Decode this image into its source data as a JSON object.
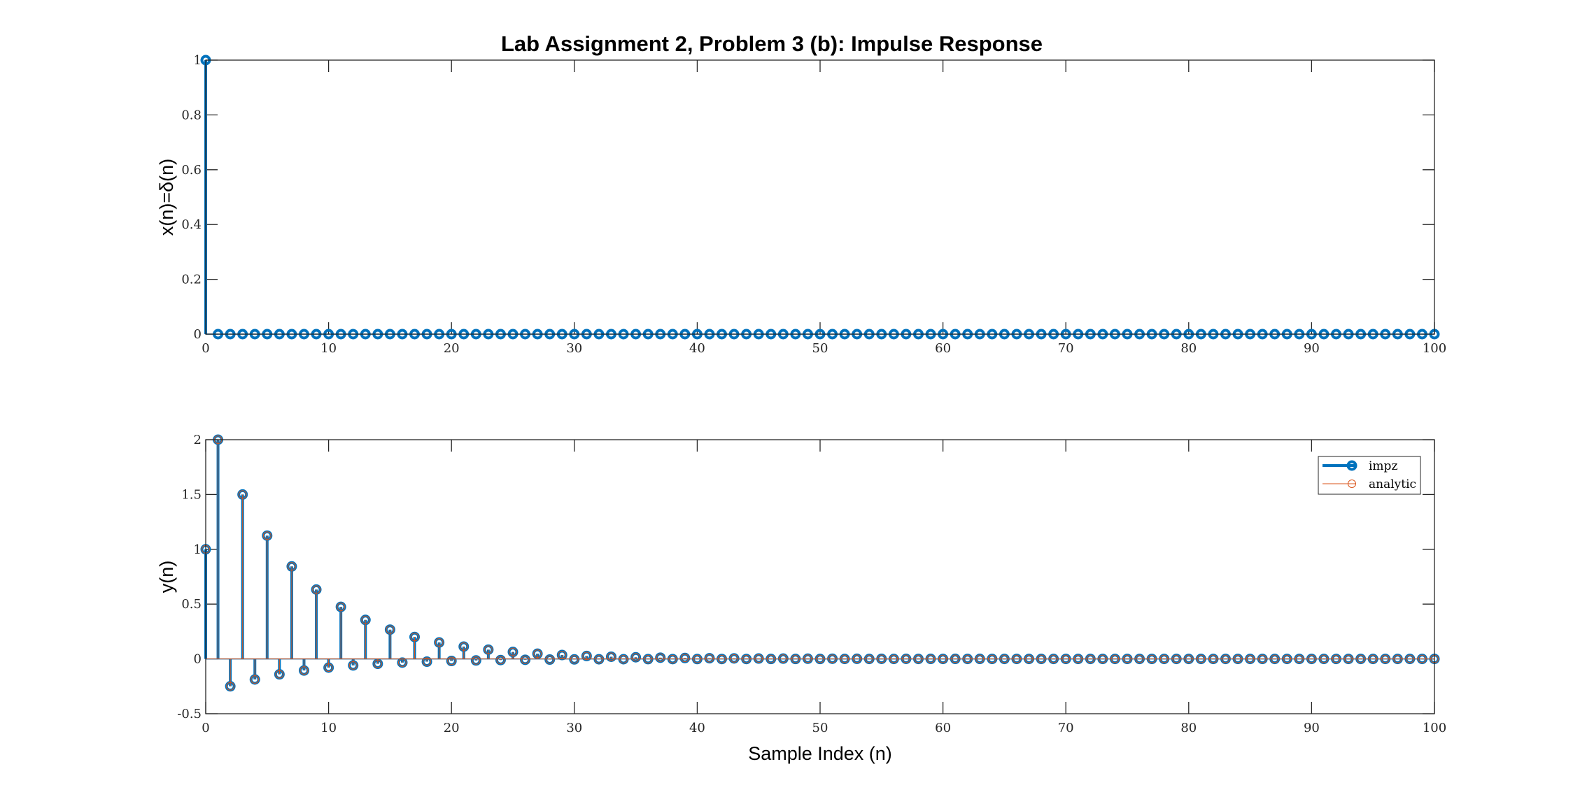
{
  "chart_data": [
    {
      "type": "stem",
      "title": "Lab Assignment 2, Problem 3 (b): Impulse Response",
      "ylabel": "x(n)=δ(n)",
      "xlabel": "",
      "xlim": [
        0,
        100
      ],
      "ylim": [
        0,
        1
      ],
      "xticks": [
        "0",
        "10",
        "20",
        "30",
        "40",
        "50",
        "60",
        "70",
        "80",
        "90",
        "100"
      ],
      "yticks": [
        "0",
        "0.2",
        "0.4",
        "0.6",
        "0.8",
        "1"
      ],
      "grid": false,
      "series": [
        {
          "color": "#0072BD",
          "rule": "impulse",
          "n_start": 0,
          "n_end": 100
        }
      ]
    },
    {
      "type": "stem",
      "title": "",
      "ylabel": "y(n)",
      "xlabel": "Sample Index (n)",
      "xlim": [
        0,
        100
      ],
      "ylim": [
        -0.5,
        2
      ],
      "xticks": [
        "0",
        "10",
        "20",
        "30",
        "40",
        "50",
        "60",
        "70",
        "80",
        "90",
        "100"
      ],
      "yticks": [
        "-0.5",
        "0",
        "0.5",
        "1",
        "1.5",
        "2"
      ],
      "grid": false,
      "legend_position": "top-right",
      "series": [
        {
          "name": "impz",
          "color": "#0072BD",
          "n_start": 0,
          "n_end": 100,
          "first_values": [
            1,
            2,
            -0.25,
            1.5,
            -0.1875,
            1.125,
            -0.140625,
            0.84375,
            -0.10546875,
            0.6328125
          ]
        },
        {
          "name": "analytic",
          "color": "#D95319",
          "n_start": 0,
          "n_end": 100,
          "first_values": [
            1,
            2,
            -0.25,
            1.5,
            -0.1875,
            1.125,
            -0.140625,
            0.84375,
            -0.10546875,
            0.6328125
          ]
        }
      ]
    }
  ]
}
